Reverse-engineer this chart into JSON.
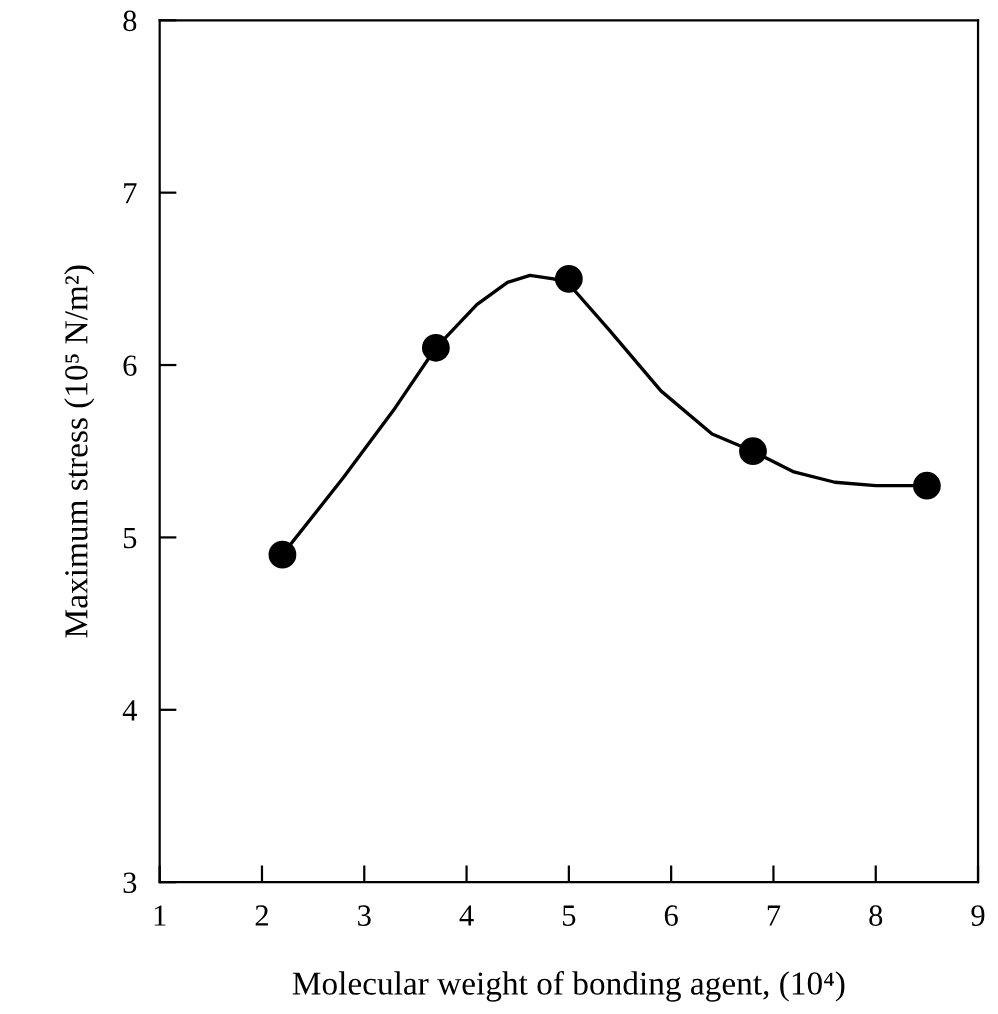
{
  "chart_data": {
    "type": "scatter",
    "xlabel": "Molecular weight of bonding agent, (10⁴)",
    "ylabel": "Maximum stress (10⁵ N/m²)",
    "xlim": [
      1,
      9
    ],
    "ylim": [
      3,
      8
    ],
    "xticks": [
      1,
      2,
      3,
      4,
      5,
      6,
      7,
      8,
      9
    ],
    "yticks": [
      3,
      4,
      5,
      6,
      7,
      8
    ],
    "grid": false,
    "marker": "circle",
    "series": [
      {
        "color": "#000000",
        "x": [
          2.2,
          3.7,
          5.0,
          6.8,
          8.5
        ],
        "values": [
          4.9,
          6.1,
          6.5,
          5.5,
          5.3
        ]
      },
      {
        "type": "line",
        "color": "#000000",
        "line_style": "solid",
        "marker": "none",
        "x": [
          2.2,
          2.8,
          3.3,
          3.7,
          4.1,
          4.4,
          4.62,
          4.85,
          5.0,
          5.4,
          5.9,
          6.4,
          6.8,
          7.2,
          7.6,
          8.0,
          8.5
        ],
        "values": [
          4.9,
          5.35,
          5.75,
          6.1,
          6.35,
          6.48,
          6.52,
          6.5,
          6.47,
          6.2,
          5.85,
          5.6,
          5.5,
          5.38,
          5.32,
          5.3,
          5.3
        ]
      }
    ]
  }
}
